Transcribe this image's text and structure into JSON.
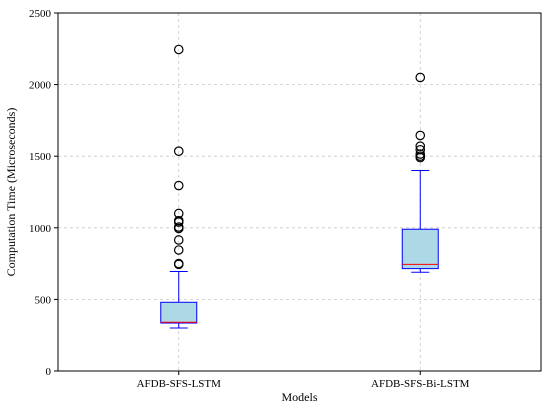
{
  "chart_data": {
    "type": "box",
    "title": "",
    "xlabel": "Models",
    "ylabel": "Computation Time (Microseconds)",
    "ylim": [
      0,
      2500
    ],
    "yticks": [
      0,
      500,
      1000,
      1500,
      2000,
      2500
    ],
    "grid": true,
    "categories": [
      "AFDB-SFS-LSTM",
      "AFDB-SFS-Bi-LSTM"
    ],
    "boxes": [
      {
        "whisker_low": 300,
        "q1": 335,
        "median": 340,
        "q3": 480,
        "whisker_high": 695,
        "outliers": [
          745,
          750,
          845,
          915,
          995,
          1005,
          1040,
          1050,
          1100,
          1295,
          1535,
          2245
        ]
      },
      {
        "whisker_low": 690,
        "q1": 715,
        "median": 745,
        "q3": 990,
        "whisker_high": 1400,
        "outliers": [
          1490,
          1500,
          1515,
          1545,
          1570,
          1645,
          2050
        ]
      }
    ],
    "colors": {
      "box_fill": "#add8e6",
      "box_edge": "#0000ff",
      "median": "#ff0000",
      "whisker": "#0000ff",
      "outlier": "#000000",
      "grid": "#c8c8c8"
    }
  }
}
